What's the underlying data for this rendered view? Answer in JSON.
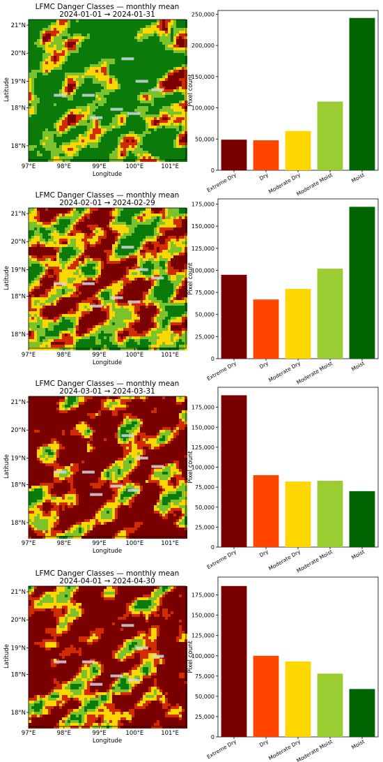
{
  "chart_data": [
    {
      "panel": "map",
      "title_line1": "LFMC Danger Classes — monthly mean",
      "title_line2": "2024-01-01 → 2024-01-31",
      "xlabel": "Longitude",
      "ylabel": "Latitude",
      "x_ticks": [
        "97°E",
        "98°E",
        "99°E",
        "100°E",
        "101°E"
      ],
      "y_ticks": [
        "21°N",
        "20°N",
        "19°N",
        "18°N",
        "18°N"
      ],
      "dryness": 0.22
    },
    {
      "panel": "bar",
      "type": "bar",
      "categories": [
        "Extreme Dry",
        "Dry",
        "Moderate Dry",
        "Moderate Moist",
        "Moist"
      ],
      "values": [
        49000,
        48000,
        63000,
        110000,
        244000
      ],
      "colors": [
        "#7a0000",
        "#ff4500",
        "#ffd700",
        "#9acd32",
        "#006400"
      ],
      "ylabel": "Pixel count",
      "ylim": [
        0,
        256000
      ],
      "yticks": [
        0,
        50000,
        100000,
        150000,
        200000,
        250000
      ]
    },
    {
      "panel": "map",
      "title_line1": "LFMC Danger Classes — monthly mean",
      "title_line2": "2024-02-01 → 2024-02-29",
      "xlabel": "Longitude",
      "ylabel": "Latitude",
      "x_ticks": [
        "97°E",
        "98°E",
        "99°E",
        "100°E",
        "101°E"
      ],
      "y_ticks": [
        "21°N",
        "20°N",
        "19°N",
        "18°N",
        "18°N"
      ],
      "dryness": 0.38
    },
    {
      "panel": "bar",
      "type": "bar",
      "categories": [
        "Extreme Dry",
        "Dry",
        "Moderate Dry",
        "Moderate Moist",
        "Moist"
      ],
      "values": [
        95000,
        67000,
        79000,
        102000,
        172000
      ],
      "colors": [
        "#7a0000",
        "#ff4500",
        "#ffd700",
        "#9acd32",
        "#006400"
      ],
      "ylabel": "Pixel count",
      "ylim": [
        0,
        181000
      ],
      "yticks": [
        0,
        25000,
        50000,
        75000,
        100000,
        125000,
        150000,
        175000
      ]
    },
    {
      "panel": "map",
      "title_line1": "LFMC Danger Classes — monthly mean",
      "title_line2": "2024-03-01 → 2024-03-31",
      "xlabel": "Longitude",
      "ylabel": "Latitude",
      "x_ticks": [
        "97°E",
        "98°E",
        "99°E",
        "100°E",
        "101°E"
      ],
      "y_ticks": [
        "21°N",
        "20°N",
        "19°N",
        "18°N",
        "18°N"
      ],
      "dryness": 0.58
    },
    {
      "panel": "bar",
      "type": "bar",
      "categories": [
        "Extreme Dry",
        "Dry",
        "Moderate Dry",
        "Moderate Moist",
        "Moist"
      ],
      "values": [
        190000,
        90000,
        82000,
        83000,
        70000
      ],
      "colors": [
        "#7a0000",
        "#ff4500",
        "#ffd700",
        "#9acd32",
        "#006400"
      ],
      "ylabel": "Pixel count",
      "ylim": [
        0,
        200000
      ],
      "yticks": [
        0,
        25000,
        50000,
        75000,
        100000,
        125000,
        150000,
        175000
      ]
    },
    {
      "panel": "map",
      "title_line1": "LFMC Danger Classes — monthly mean",
      "title_line2": "2024-04-01 → 2024-04-30",
      "xlabel": "Longitude",
      "ylabel": "Latitude",
      "x_ticks": [
        "97°E",
        "98°E",
        "99°E",
        "100°E",
        "101°E"
      ],
      "y_ticks": [
        "21°N",
        "20°N",
        "19°N",
        "18°N",
        "18°N"
      ],
      "dryness": 0.55
    },
    {
      "panel": "bar",
      "type": "bar",
      "categories": [
        "Extreme Dry",
        "Dry",
        "Moderate Dry",
        "Moderate Moist",
        "Moist"
      ],
      "values": [
        186000,
        100000,
        93000,
        78000,
        59000
      ],
      "colors": [
        "#7a0000",
        "#ff4500",
        "#ffd700",
        "#9acd32",
        "#006400"
      ],
      "ylabel": "Pixel count",
      "ylim": [
        0,
        197000
      ],
      "yticks": [
        0,
        25000,
        50000,
        75000,
        100000,
        125000,
        150000,
        175000
      ]
    }
  ]
}
